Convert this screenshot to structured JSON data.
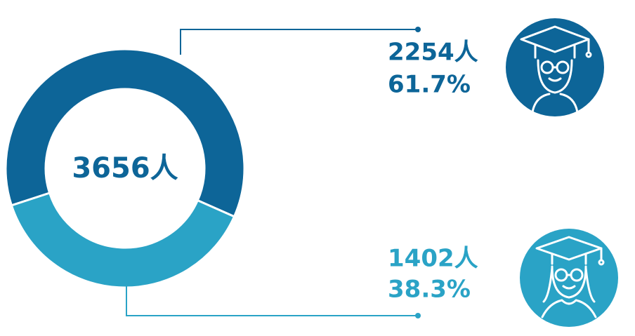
{
  "chart_data": {
    "type": "donut",
    "total": 3656,
    "total_label": "3656人",
    "series": [
      {
        "color": "#0d6598",
        "values": [
          2254
        ],
        "value_labels": [
          "2254人"
        ],
        "percents": [
          61.7
        ],
        "percent_labels": [
          "61.7%"
        ]
      },
      {
        "color": "#2aa3c6",
        "values": [
          1402
        ],
        "value_labels": [
          "1402人"
        ],
        "percents": [
          38.3
        ],
        "percent_labels": [
          "38.3%"
        ]
      }
    ]
  }
}
